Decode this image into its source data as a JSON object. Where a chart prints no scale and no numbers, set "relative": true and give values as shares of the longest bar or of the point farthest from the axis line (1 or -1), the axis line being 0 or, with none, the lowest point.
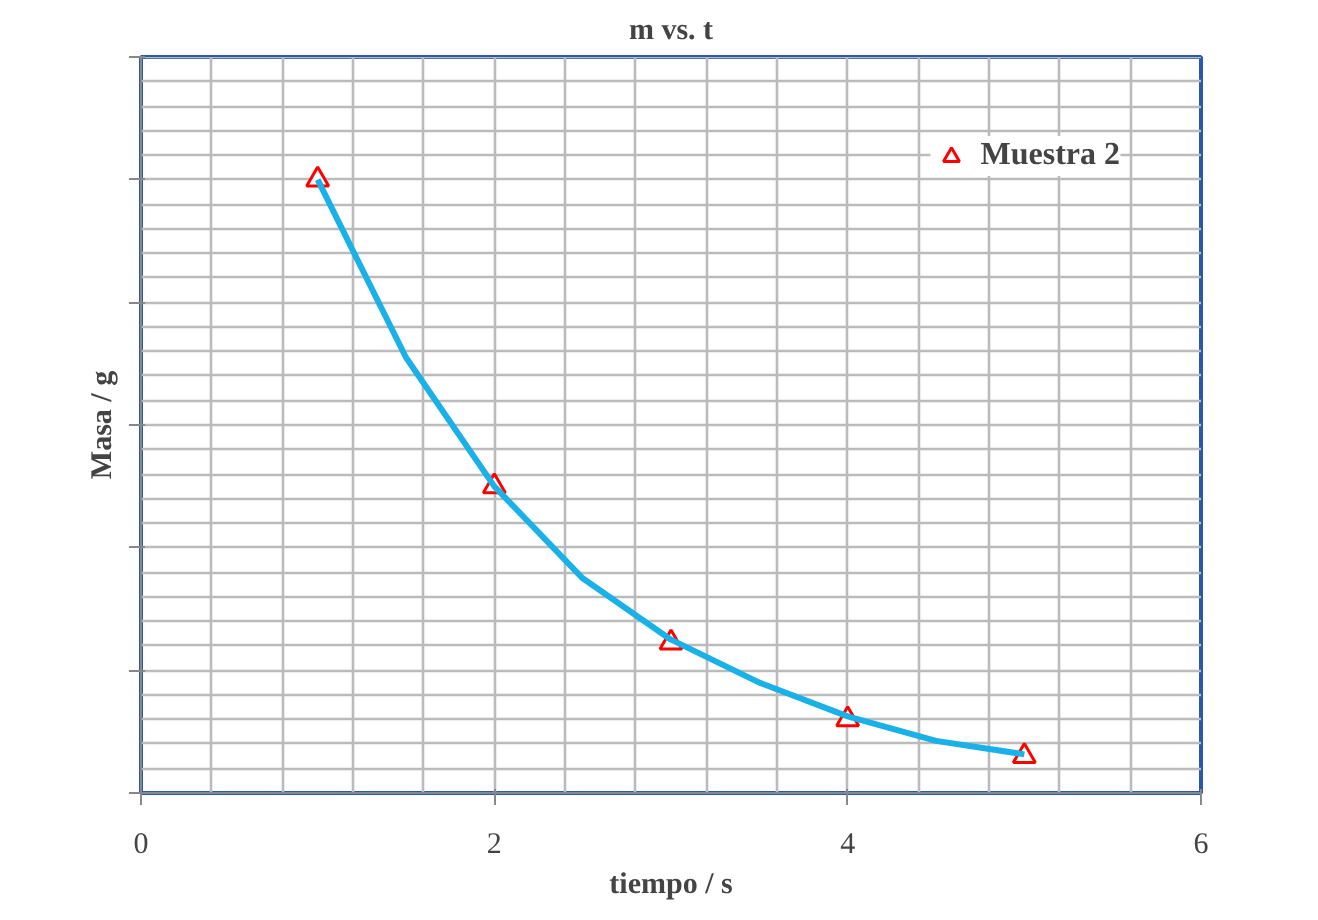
{
  "chart_data": {
    "type": "scatter",
    "title": "m vs. t",
    "xlabel": "tiempo / s",
    "ylabel": "Masa / g",
    "relative": true,
    "xlim": [
      0,
      6
    ],
    "xticks": [
      0,
      2,
      4,
      6
    ],
    "grid": true,
    "legend": "top right",
    "marker": "triangle",
    "series": [
      {
        "name": "Muestra 2",
        "color": "#ff0000",
        "x": [
          1,
          2,
          3,
          4,
          5
        ],
        "values": [
          1,
          0.5,
          0.245,
          0.12,
          0.06
        ]
      },
      {
        "type": "line",
        "color": "#1ab0e8",
        "line_style": "solid",
        "marker": "none",
        "x": [
          1,
          1.5,
          2,
          2.5,
          3,
          3.5,
          4,
          4.5,
          5
        ],
        "values": [
          1,
          0.71,
          0.5,
          0.35,
          0.25,
          0.18,
          0.125,
          0.085,
          0.063
        ]
      }
    ]
  }
}
